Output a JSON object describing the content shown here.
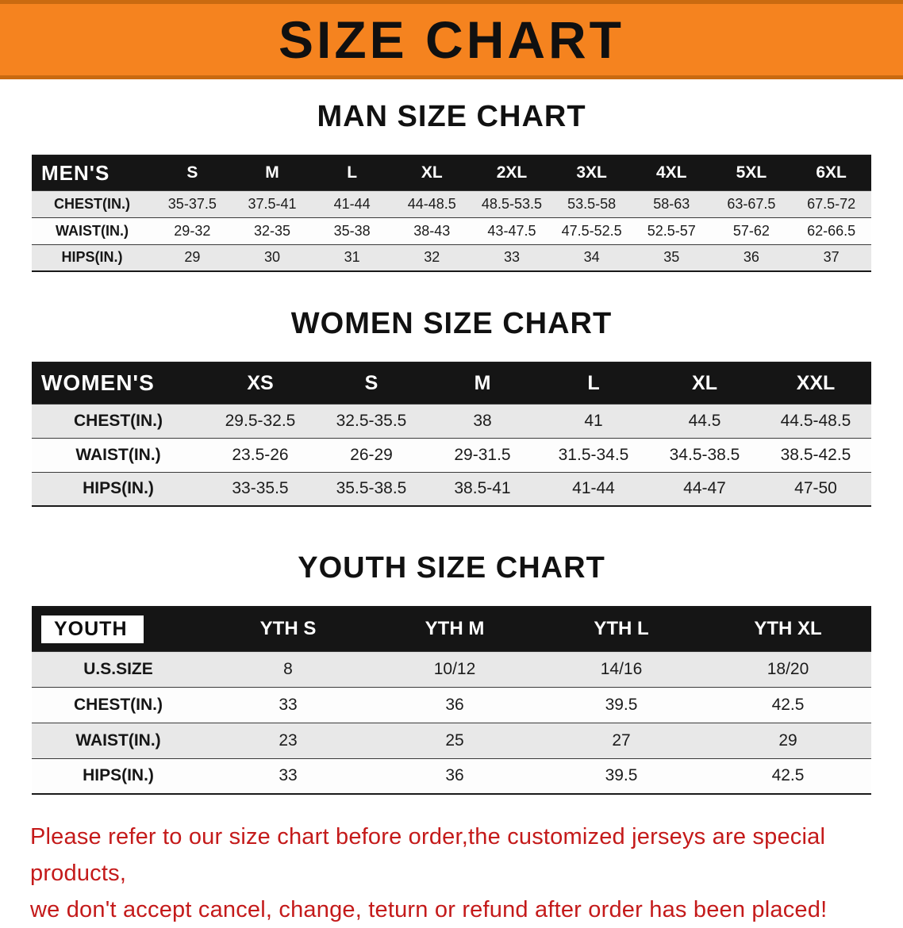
{
  "banner": {
    "title": "SIZE CHART"
  },
  "colors": {
    "banner-bg": "#f5831f",
    "header-bg": "#151515",
    "row-alt": "#e8e8e8",
    "footer-red": "#c41a1a"
  },
  "mens": {
    "heading": "MAN SIZE CHART",
    "corner": "MEN'S",
    "columns": [
      "S",
      "M",
      "L",
      "XL",
      "2XL",
      "3XL",
      "4XL",
      "5XL",
      "6XL"
    ],
    "rows": [
      [
        "CHEST(IN.)",
        "35-37.5",
        "37.5-41",
        "41-44",
        "44-48.5",
        "48.5-53.5",
        "53.5-58",
        "58-63",
        "63-67.5",
        "67.5-72"
      ],
      [
        "WAIST(IN.)",
        "29-32",
        "32-35",
        "35-38",
        "38-43",
        "43-47.5",
        "47.5-52.5",
        "52.5-57",
        "57-62",
        "62-66.5"
      ],
      [
        "HIPS(IN.)",
        "29",
        "30",
        "31",
        "32",
        "33",
        "34",
        "35",
        "36",
        "37"
      ]
    ]
  },
  "womens": {
    "heading": "WOMEN SIZE CHART",
    "corner": "WOMEN'S",
    "columns": [
      "XS",
      "S",
      "M",
      "L",
      "XL",
      "XXL"
    ],
    "rows": [
      [
        "CHEST(IN.)",
        "29.5-32.5",
        "32.5-35.5",
        "38",
        "41",
        "44.5",
        "44.5-48.5"
      ],
      [
        "WAIST(IN.)",
        "23.5-26",
        "26-29",
        "29-31.5",
        "31.5-34.5",
        "34.5-38.5",
        "38.5-42.5"
      ],
      [
        "HIPS(IN.)",
        "33-35.5",
        "35.5-38.5",
        "38.5-41",
        "41-44",
        "44-47",
        "47-50"
      ]
    ]
  },
  "youth": {
    "heading": "YOUTH SIZE CHART",
    "corner": "YOUTH",
    "columns": [
      "YTH S",
      "YTH M",
      "YTH L",
      "YTH XL"
    ],
    "rows": [
      [
        "U.S.SIZE",
        "8",
        "10/12",
        "14/16",
        "18/20"
      ],
      [
        "CHEST(IN.)",
        "33",
        "36",
        "39.5",
        "42.5"
      ],
      [
        "WAIST(IN.)",
        "23",
        "25",
        "27",
        "29"
      ],
      [
        "HIPS(IN.)",
        "33",
        "36",
        "39.5",
        "42.5"
      ]
    ]
  },
  "footer": {
    "line1": "Please refer to our size chart before order,the customized jerseys are special products,",
    "line2": "we don't accept cancel, change, teturn or refund after order has been placed!"
  }
}
